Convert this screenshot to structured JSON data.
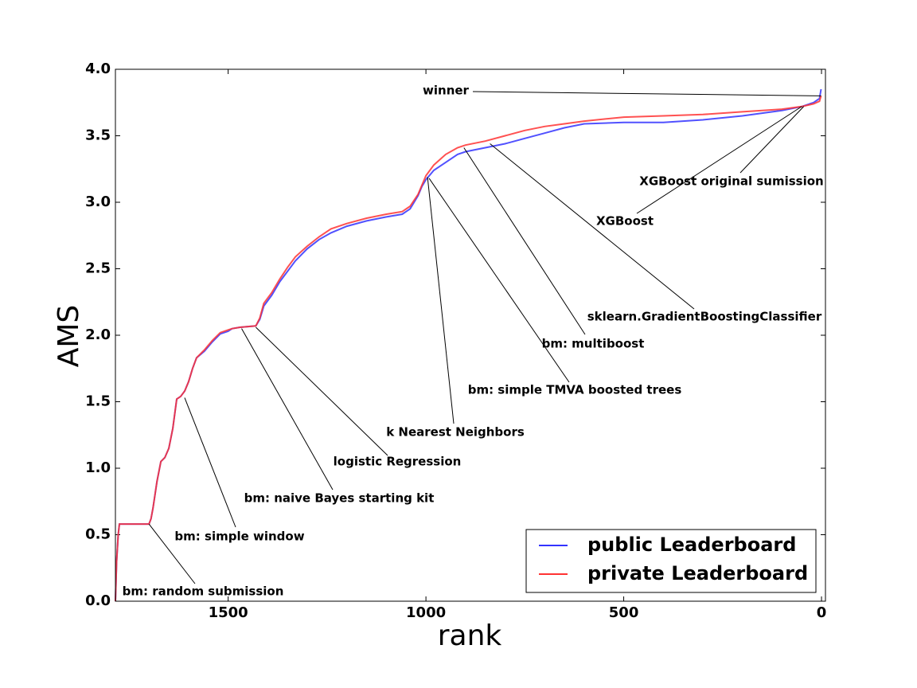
{
  "chart_data": {
    "type": "line",
    "xlabel": "rank",
    "ylabel": "AMS",
    "xlim": [
      1785,
      -10
    ],
    "ylim": [
      0,
      4
    ],
    "xticks": [
      1500,
      1000,
      500,
      0
    ],
    "yticks": [
      {
        "value": 0,
        "label": "0.0"
      },
      0.5,
      {
        "value": 1,
        "label": "1.0"
      },
      1.5,
      {
        "value": 2,
        "label": "2.0"
      },
      2.5,
      {
        "value": 3,
        "label": "3.0"
      },
      3.5,
      {
        "value": 4,
        "label": "4.0"
      }
    ],
    "legend": "lower right",
    "series": [
      {
        "name": "public Leaderboard",
        "color": "#3333ff",
        "x": [
          1785,
          1782,
          1778,
          1775,
          1700,
          1695,
          1690,
          1680,
          1670,
          1660,
          1650,
          1640,
          1630,
          1620,
          1610,
          1600,
          1590,
          1580,
          1560,
          1540,
          1520,
          1500,
          1490,
          1470,
          1430,
          1420,
          1410,
          1390,
          1370,
          1350,
          1330,
          1300,
          1270,
          1240,
          1200,
          1150,
          1100,
          1060,
          1040,
          1020,
          1010,
          1000,
          980,
          950,
          920,
          900,
          850,
          800,
          750,
          700,
          650,
          600,
          500,
          400,
          300,
          200,
          100,
          50,
          20,
          5,
          1
        ],
        "values": [
          0,
          0.3,
          0.5,
          0.58,
          0.58,
          0.62,
          0.7,
          0.9,
          1.05,
          1.08,
          1.15,
          1.3,
          1.52,
          1.54,
          1.58,
          1.65,
          1.75,
          1.83,
          1.88,
          1.95,
          2.01,
          2.03,
          2.05,
          2.06,
          2.07,
          2.12,
          2.22,
          2.3,
          2.4,
          2.48,
          2.56,
          2.65,
          2.72,
          2.77,
          2.82,
          2.86,
          2.89,
          2.91,
          2.95,
          3.05,
          3.12,
          3.17,
          3.24,
          3.3,
          3.36,
          3.38,
          3.41,
          3.44,
          3.48,
          3.52,
          3.56,
          3.59,
          3.6,
          3.6,
          3.62,
          3.65,
          3.69,
          3.72,
          3.75,
          3.78,
          3.85
        ]
      },
      {
        "name": "private Leaderboard",
        "color": "#ff3333",
        "x": [
          1785,
          1782,
          1778,
          1775,
          1700,
          1695,
          1690,
          1680,
          1670,
          1660,
          1650,
          1640,
          1630,
          1620,
          1610,
          1600,
          1590,
          1580,
          1560,
          1540,
          1520,
          1500,
          1490,
          1470,
          1430,
          1420,
          1410,
          1390,
          1370,
          1350,
          1330,
          1300,
          1270,
          1240,
          1200,
          1150,
          1100,
          1060,
          1040,
          1020,
          1000,
          980,
          950,
          920,
          900,
          850,
          800,
          750,
          700,
          650,
          600,
          500,
          400,
          300,
          200,
          100,
          50,
          20,
          5,
          1
        ],
        "values": [
          0,
          0.3,
          0.5,
          0.58,
          0.58,
          0.62,
          0.7,
          0.9,
          1.05,
          1.08,
          1.15,
          1.3,
          1.52,
          1.54,
          1.58,
          1.65,
          1.75,
          1.83,
          1.89,
          1.96,
          2.02,
          2.04,
          2.05,
          2.06,
          2.07,
          2.13,
          2.24,
          2.32,
          2.42,
          2.51,
          2.59,
          2.67,
          2.74,
          2.8,
          2.84,
          2.88,
          2.91,
          2.93,
          2.97,
          3.06,
          3.2,
          3.28,
          3.36,
          3.41,
          3.43,
          3.46,
          3.5,
          3.54,
          3.57,
          3.59,
          3.61,
          3.64,
          3.65,
          3.66,
          3.68,
          3.7,
          3.72,
          3.74,
          3.76,
          3.8
        ]
      }
    ],
    "annotations": [
      {
        "text": "winner",
        "x": 1,
        "y": 3.8
      },
      {
        "text": "XGBoost original sumission",
        "x": 45,
        "y": 3.72
      },
      {
        "text": "XGBoost",
        "x": 50,
        "y": 3.72
      },
      {
        "text": "sklearn.GradientBoostingClassifier",
        "x": 838,
        "y": 3.44
      },
      {
        "text": "bm: multiboost",
        "x": 904,
        "y": 3.41
      },
      {
        "text": "bm: simple TMVA boosted trees",
        "x": 992,
        "y": 3.18
      },
      {
        "text": "k Nearest Neighbors",
        "x": 996,
        "y": 3.19
      },
      {
        "text": "logistic Regression",
        "x": 1430,
        "y": 2.06
      },
      {
        "text": "bm: naive Bayes starting kit",
        "x": 1466,
        "y": 2.05
      },
      {
        "text": "bm: simple window",
        "x": 1610,
        "y": 1.53
      },
      {
        "text": "bm: random submission",
        "x": 1700,
        "y": 0.58
      }
    ]
  }
}
